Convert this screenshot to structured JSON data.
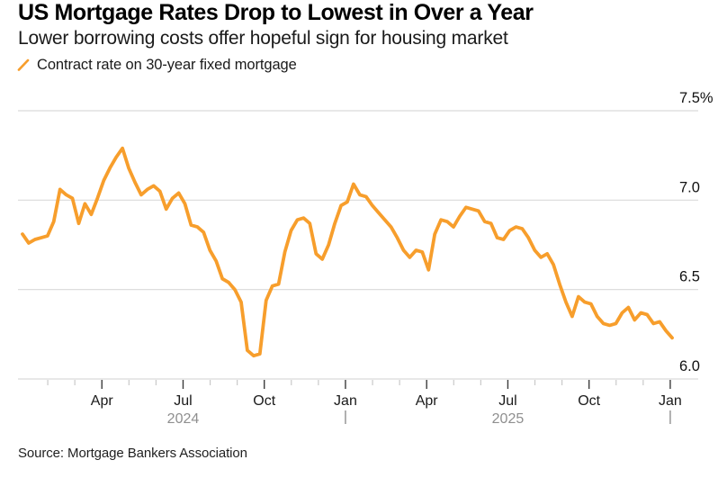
{
  "header": {
    "title": "US Mortgage Rates Drop to Lowest in Over a Year",
    "subtitle": "Lower borrowing costs offer hopeful sign for housing market"
  },
  "legend": {
    "label": "Contract rate on 30-year fixed mortgage",
    "marker_color": "#F79E2C"
  },
  "footer": {
    "source": "Source: Mortgage Bankers Association"
  },
  "chart_data": {
    "type": "line",
    "series_name": "Contract rate on 30-year fixed mortgage",
    "unit": "%",
    "frequency": "weekly",
    "x_start": "Jan 2024",
    "x_end": "Jan 2026",
    "values": [
      6.81,
      6.76,
      6.78,
      6.79,
      6.8,
      6.88,
      7.06,
      7.03,
      7.01,
      6.87,
      6.98,
      6.92,
      7.01,
      7.11,
      7.18,
      7.24,
      7.29,
      7.18,
      7.1,
      7.03,
      7.06,
      7.08,
      7.05,
      6.95,
      7.01,
      7.04,
      6.98,
      6.86,
      6.85,
      6.82,
      6.72,
      6.66,
      6.56,
      6.54,
      6.5,
      6.43,
      6.16,
      6.13,
      6.14,
      6.44,
      6.52,
      6.53,
      6.71,
      6.83,
      6.89,
      6.9,
      6.87,
      6.7,
      6.67,
      6.75,
      6.87,
      6.97,
      6.99,
      7.09,
      7.03,
      7.02,
      6.97,
      6.93,
      6.89,
      6.85,
      6.79,
      6.72,
      6.68,
      6.72,
      6.71,
      6.61,
      6.81,
      6.89,
      6.88,
      6.85,
      6.91,
      6.96,
      6.95,
      6.94,
      6.88,
      6.87,
      6.79,
      6.78,
      6.83,
      6.85,
      6.84,
      6.79,
      6.72,
      6.68,
      6.7,
      6.64,
      6.53,
      6.43,
      6.35,
      6.46,
      6.43,
      6.42,
      6.35,
      6.31,
      6.3,
      6.31,
      6.37,
      6.4,
      6.33,
      6.37,
      6.36,
      6.31,
      6.32,
      6.27,
      6.23
    ],
    "ylim": [
      6.0,
      7.5
    ],
    "y_ticks": [
      {
        "value": 7.5,
        "label": "7.5%"
      },
      {
        "value": 7.0,
        "label": "7.0"
      },
      {
        "value": 6.5,
        "label": "6.5"
      },
      {
        "value": 6.0,
        "label": "6.0"
      }
    ],
    "x_major_ticks": [
      {
        "label": "Apr",
        "month_index": 3
      },
      {
        "label": "Jul",
        "month_index": 6
      },
      {
        "label": "Oct",
        "month_index": 9
      },
      {
        "label": "Jan",
        "month_index": 12
      },
      {
        "label": "Apr",
        "month_index": 15
      },
      {
        "label": "Jul",
        "month_index": 18
      },
      {
        "label": "Oct",
        "month_index": 21
      },
      {
        "label": "Jan",
        "month_index": 24
      }
    ],
    "x_year_labels": [
      {
        "label": "2024",
        "month_index": 6
      },
      {
        "label": "2025",
        "month_index": 18
      }
    ],
    "year_divider_month_indices": [
      12,
      24
    ],
    "grid_on": true,
    "legend_position": "top-left",
    "line_color": "#F79E2C",
    "grid_color": "#D9D9D9",
    "axis_text_color": "#1a1a1a",
    "muted_text_color": "#8f8f8f",
    "major_tick_color": "#3c3c3c",
    "minor_tick_color": "#c9c9c9"
  }
}
